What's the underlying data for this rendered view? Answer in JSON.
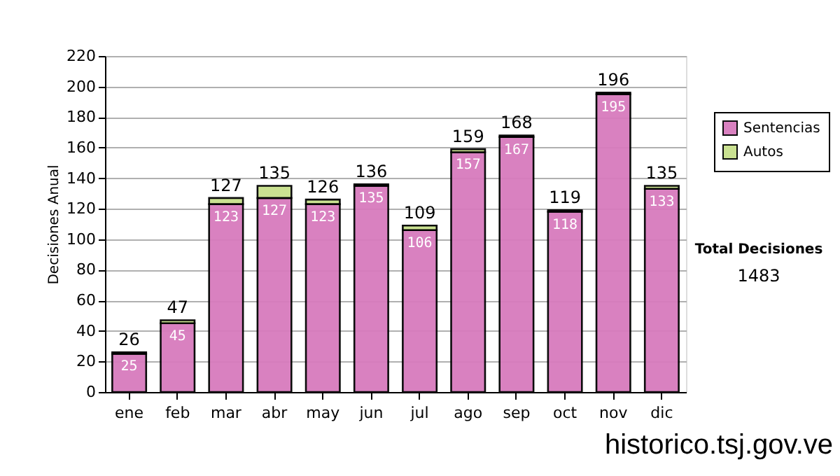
{
  "chart_data": {
    "type": "bar",
    "stacked": true,
    "ylabel": "Decisiones Anual",
    "categories": [
      "ene",
      "feb",
      "mar",
      "abr",
      "may",
      "jun",
      "jul",
      "ago",
      "sep",
      "oct",
      "nov",
      "dic"
    ],
    "series": [
      {
        "name": "Sentencias",
        "color": "#d87bbd",
        "values": [
          25,
          45,
          123,
          127,
          123,
          135,
          106,
          157,
          167,
          118,
          195,
          133
        ],
        "value_labels": [
          "25",
          "45",
          "123",
          "127",
          "123",
          "135",
          "106",
          "157",
          "167",
          "118",
          "195",
          "133"
        ]
      },
      {
        "name": "Autos",
        "color": "#c8e08c",
        "values": [
          1,
          2,
          4,
          8,
          3,
          1,
          3,
          2,
          1,
          1,
          1,
          2
        ]
      }
    ],
    "totals": [
      "26",
      "47",
      "127",
      "135",
      "126",
      "136",
      "109",
      "159",
      "168",
      "119",
      "196",
      "135"
    ],
    "ylim": [
      0,
      220
    ],
    "yticks": [
      0,
      20,
      40,
      60,
      80,
      100,
      120,
      140,
      160,
      180,
      200,
      220
    ],
    "grid": "y",
    "legend": "right",
    "annotations": [
      "Total Decisiones",
      "1483",
      "historico.tsj.gov.ve"
    ]
  }
}
